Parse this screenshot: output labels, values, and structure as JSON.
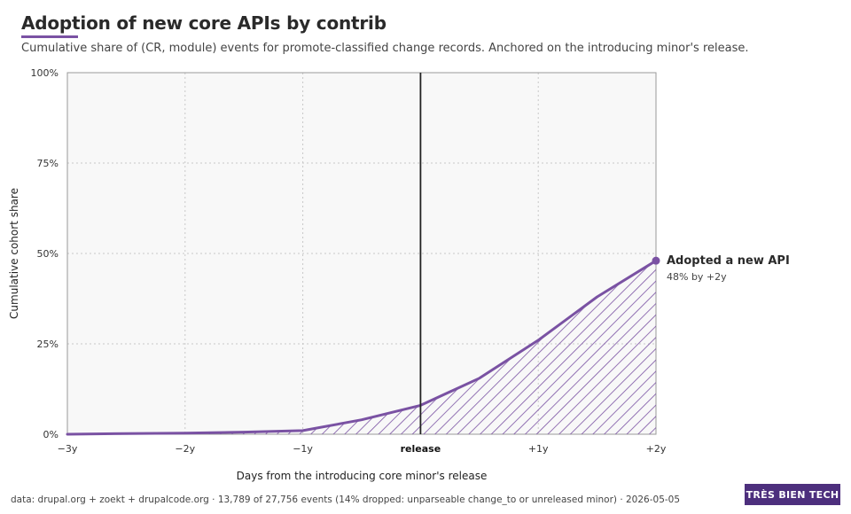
{
  "header": {
    "title": "Adoption of new core APIs by contrib",
    "subtitle": "Cumulative share of (CR, module) events for promote-classified change records. Anchored on the introducing minor's release."
  },
  "footer": {
    "source": "data: drupal.org + zoekt + drupalcode.org · 13,789 of 27,756 events (14% dropped: unparseable change_to or unreleased minor) · 2026-05-05",
    "brand": "TRÈS BIEN TECH"
  },
  "colors": {
    "series": "#7a52a3",
    "brand": "#4d2f7d",
    "release_line": "#222222",
    "plot_background": "#f8f8f8"
  },
  "chart_data": {
    "type": "area",
    "title": "Adoption of new core APIs by contrib",
    "xlabel": "Days from the introducing core minor's release",
    "ylabel": "Cumulative cohort share",
    "x_unit": "years relative to release",
    "xlim": [
      -3,
      2
    ],
    "ylim": [
      0,
      100
    ],
    "x_ticks": [
      {
        "value": -3,
        "label": "−3y",
        "bold": false
      },
      {
        "value": -2,
        "label": "−2y",
        "bold": false
      },
      {
        "value": -1,
        "label": "−1y",
        "bold": false
      },
      {
        "value": 0,
        "label": "release",
        "bold": true
      },
      {
        "value": 1,
        "label": "+1y",
        "bold": false
      },
      {
        "value": 2,
        "label": "+2y",
        "bold": false
      }
    ],
    "y_ticks": [
      {
        "value": 0,
        "label": "0%"
      },
      {
        "value": 25,
        "label": "25%"
      },
      {
        "value": 50,
        "label": "50%"
      },
      {
        "value": 75,
        "label": "75%"
      },
      {
        "value": 100,
        "label": "100%"
      }
    ],
    "grid": true,
    "release_marker_x": 0,
    "series": [
      {
        "name": "Adopted a new API",
        "x": [
          -3,
          -2.5,
          -2,
          -1.5,
          -1,
          -0.5,
          0,
          0.5,
          1,
          1.5,
          2
        ],
        "values": [
          0,
          0.2,
          0.3,
          0.6,
          1,
          4,
          8,
          15.5,
          26,
          38,
          48
        ]
      }
    ],
    "end_label": {
      "title": "Adopted a new API",
      "detail": "48% by +2y"
    }
  }
}
